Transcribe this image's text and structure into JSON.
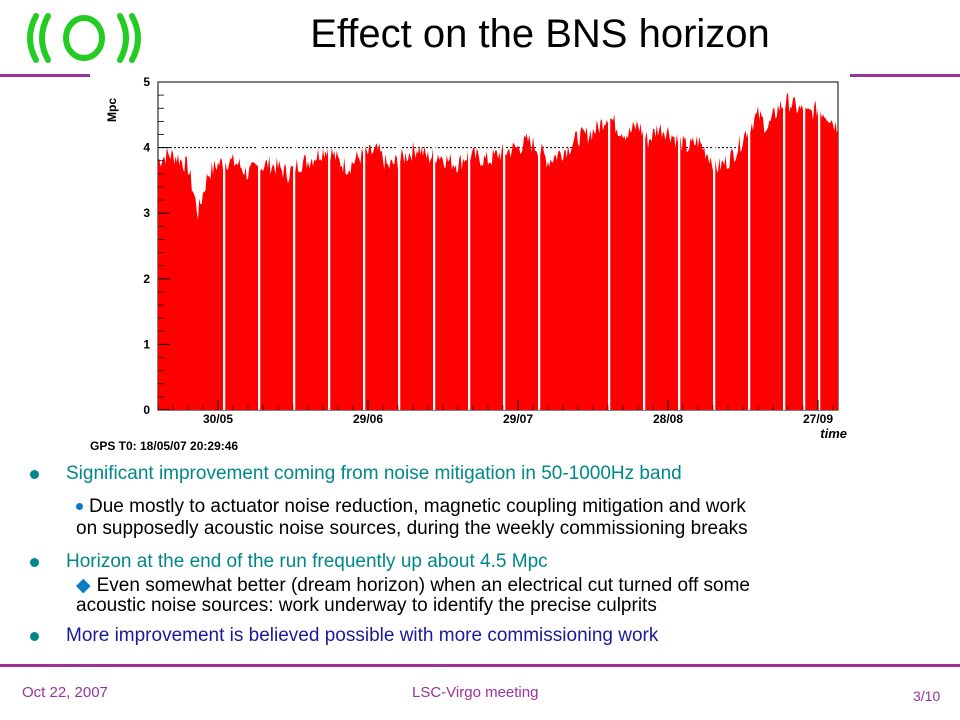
{
  "slide": {
    "title": "Effect on the BNS horizon",
    "page": "3/10"
  },
  "footer": {
    "date": "Oct 22, 2007",
    "event": "LSC-Virgo meeting"
  },
  "colors": {
    "accent_rule": "#993399",
    "bullet_teal": "#008888",
    "bullet_blue": "#1a1a99",
    "series_fill": "#ff0000",
    "logo_green": "#22cc22"
  },
  "icons": {
    "logo": "virgo-waves-logo",
    "sub_bullet_1": "small-dot",
    "sub_bullet_2": "diamond"
  },
  "bullets": [
    {
      "text": "Significant improvement coming from noise mitigation in 50-1000Hz band",
      "sub": "Due mostly to actuator noise reduction, magnetic coupling mitigation and work",
      "sub_cont": "on supposedly acoustic noise sources, during the weekly commissioning breaks"
    },
    {
      "text": "Horizon at the end of the run frequently up about 4.5 Mpc",
      "sub": "Even somewhat better (dream horizon) when an electrical cut turned off some",
      "sub_cont": "acoustic noise sources: work underway to identify the precise culprits"
    },
    {
      "text": "More improvement is believed possible with more commissioning work"
    }
  ],
  "chart_data": {
    "type": "area",
    "title": "",
    "ylabel": "Mpc",
    "xlabel": "time",
    "ylim": [
      0,
      5
    ],
    "yticks": [
      0,
      1,
      2,
      3,
      4,
      5
    ],
    "xlim": [
      "2007-05-18",
      "2007-10-01"
    ],
    "xtick_labels": [
      "30/05",
      "29/06",
      "29/07",
      "28/08",
      "27/09"
    ],
    "xtick_dates": [
      "2007-05-30",
      "2007-06-29",
      "2007-07-29",
      "2007-08-28",
      "2007-09-27"
    ],
    "reference_lines": [
      4,
      5
    ],
    "annotation": "GPS T0: 18/05/07 20:29:46",
    "series": [
      {
        "x": [
          "2007-05-18",
          "2007-05-20",
          "2007-05-22",
          "2007-05-24",
          "2007-05-26",
          "2007-05-28",
          "2007-05-30",
          "2007-06-01",
          "2007-06-03",
          "2007-06-05",
          "2007-06-07",
          "2007-06-09",
          "2007-06-11",
          "2007-06-13",
          "2007-06-15",
          "2007-06-17",
          "2007-06-19",
          "2007-06-21",
          "2007-06-23",
          "2007-06-25",
          "2007-06-27",
          "2007-06-29",
          "2007-07-01",
          "2007-07-03",
          "2007-07-05",
          "2007-07-07",
          "2007-07-09",
          "2007-07-11",
          "2007-07-13",
          "2007-07-15",
          "2007-07-17",
          "2007-07-19",
          "2007-07-21",
          "2007-07-23",
          "2007-07-25",
          "2007-07-27",
          "2007-07-29",
          "2007-07-31",
          "2007-08-02",
          "2007-08-04",
          "2007-08-06",
          "2007-08-08",
          "2007-08-10",
          "2007-08-12",
          "2007-08-14",
          "2007-08-16",
          "2007-08-18",
          "2007-08-20",
          "2007-08-22",
          "2007-08-24",
          "2007-08-26",
          "2007-08-28",
          "2007-08-30",
          "2007-09-01",
          "2007-09-03",
          "2007-09-05",
          "2007-09-07",
          "2007-09-09",
          "2007-09-11",
          "2007-09-13",
          "2007-09-15",
          "2007-09-17",
          "2007-09-19",
          "2007-09-21",
          "2007-09-23",
          "2007-09-25",
          "2007-09-27",
          "2007-09-29",
          "2007-10-01"
        ],
        "values": [
          3.8,
          3.9,
          3.85,
          3.7,
          3.0,
          3.6,
          3.75,
          3.8,
          3.75,
          3.6,
          3.7,
          3.75,
          3.7,
          3.6,
          3.75,
          3.8,
          3.9,
          4.0,
          3.8,
          3.7,
          3.85,
          3.9,
          3.95,
          3.7,
          3.8,
          3.9,
          4.0,
          3.85,
          3.9,
          3.8,
          3.75,
          3.9,
          3.85,
          3.8,
          3.9,
          3.95,
          4.0,
          4.1,
          4.0,
          3.8,
          3.9,
          4.0,
          4.15,
          4.2,
          4.3,
          4.5,
          4.3,
          4.2,
          4.35,
          4.1,
          4.3,
          4.25,
          4.1,
          4.0,
          4.1,
          3.9,
          3.7,
          3.8,
          4.0,
          4.3,
          4.5,
          4.3,
          4.6,
          4.7,
          4.6,
          4.5,
          4.6,
          4.5,
          4.3
        ]
      }
    ],
    "gaps": [
      [
        "2007-05-31",
        "2007-06-01"
      ],
      [
        "2007-06-07",
        "2007-06-08"
      ],
      [
        "2007-06-14",
        "2007-06-15"
      ],
      [
        "2007-06-21",
        "2007-06-22"
      ],
      [
        "2007-06-28",
        "2007-06-29"
      ],
      [
        "2007-07-05",
        "2007-07-06"
      ],
      [
        "2007-07-12",
        "2007-07-13"
      ],
      [
        "2007-07-19",
        "2007-07-20"
      ],
      [
        "2007-07-26",
        "2007-07-27"
      ],
      [
        "2007-08-02",
        "2007-08-03"
      ],
      [
        "2007-08-16",
        "2007-08-17"
      ],
      [
        "2007-08-23",
        "2007-08-24"
      ],
      [
        "2007-08-30",
        "2007-08-31"
      ],
      [
        "2007-09-06",
        "2007-09-07"
      ],
      [
        "2007-09-13",
        "2007-09-14"
      ],
      [
        "2007-09-20",
        "2007-09-21"
      ],
      [
        "2007-09-24",
        "2007-09-25"
      ],
      [
        "2007-09-27",
        "2007-09-28"
      ]
    ]
  }
}
